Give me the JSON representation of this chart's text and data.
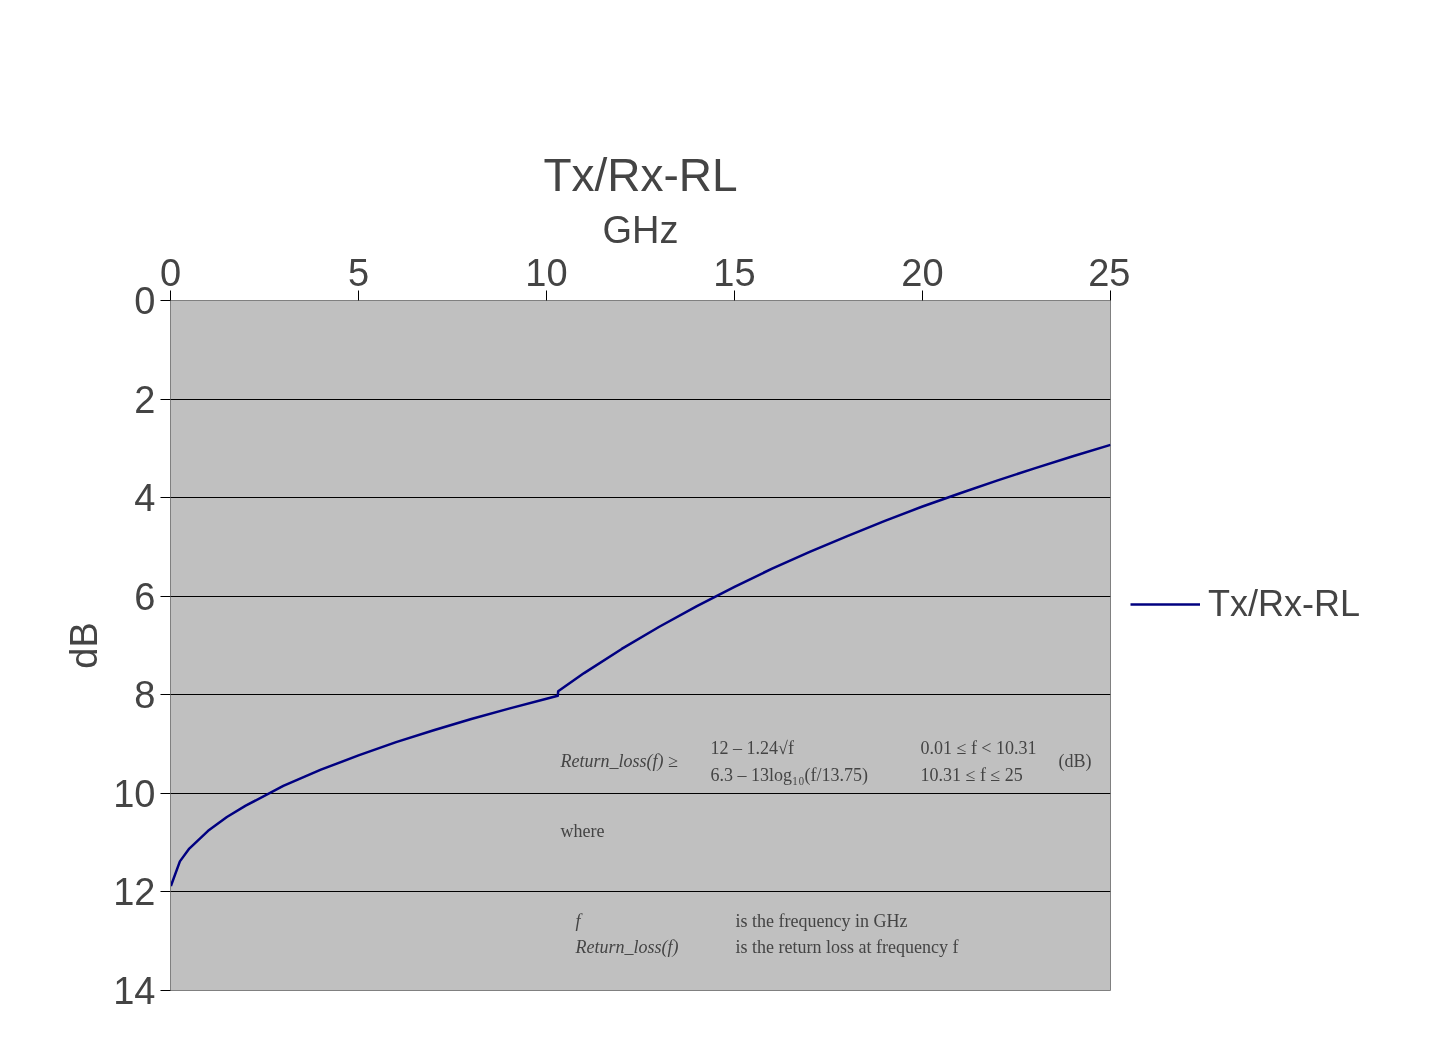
{
  "chart_data": {
    "type": "line",
    "title": "Tx/Rx-RL",
    "xlabel": "GHz",
    "ylabel": "dB",
    "x": [
      0.01,
      0.25,
      0.5,
      1,
      1.5,
      2,
      3,
      4,
      5,
      6,
      7,
      8,
      9,
      10,
      10.3,
      10.31,
      11,
      12,
      13,
      14,
      15,
      16,
      17,
      18,
      19,
      20,
      21,
      22,
      23,
      24,
      25
    ],
    "series": [
      {
        "name": "Tx/Rx-RL",
        "color": "#000080",
        "values": [
          11.88,
          11.38,
          11.12,
          10.76,
          10.48,
          10.25,
          9.85,
          9.52,
          9.23,
          8.96,
          8.72,
          8.49,
          8.28,
          8.08,
          8.02,
          7.93,
          7.56,
          7.07,
          6.62,
          6.2,
          5.81,
          5.44,
          5.1,
          4.78,
          4.47,
          4.18,
          3.91,
          3.65,
          3.4,
          3.16,
          2.93
        ]
      }
    ],
    "xlim": [
      0,
      25
    ],
    "xticks": [
      0,
      5,
      10,
      15,
      20,
      25
    ],
    "ylim": [
      14,
      0
    ],
    "yticks": [
      0,
      2,
      4,
      6,
      8,
      10,
      12,
      14
    ],
    "grid": "y",
    "legend": "right",
    "line_style": "solid",
    "marker": "none",
    "annotations": [
      "Return_loss(f) ≥",
      "12 – 1.24√f",
      "0.01 ≤ f < 10.31",
      "6.3 – 13log₁₀(f/13.75)",
      "10.31 ≤ f ≤ 25",
      "(dB)",
      "where",
      "f",
      "is the frequency in GHz",
      "Return_loss(f)",
      "is the return loss at frequency f"
    ]
  }
}
